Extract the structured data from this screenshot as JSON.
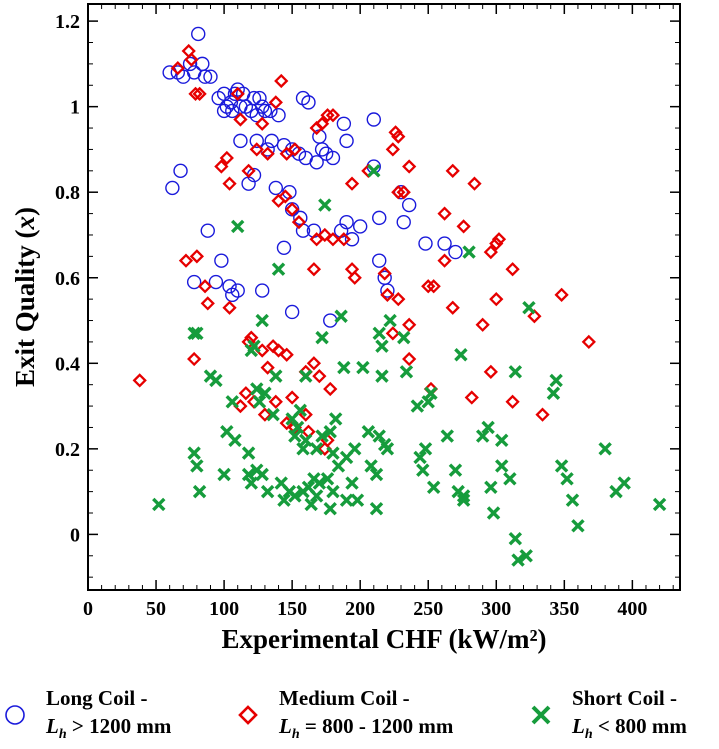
{
  "chart_data": {
    "type": "scatter",
    "title": "",
    "xlabel": "Experimental CHF (kW/m²)",
    "ylabel_prefix": "Exit Quality (",
    "ylabel_var": "x",
    "ylabel_suffix": ")",
    "xlim": [
      0,
      435
    ],
    "ylim": [
      -0.13,
      1.24
    ],
    "xticks": [
      0,
      50,
      100,
      150,
      200,
      250,
      300,
      350,
      400
    ],
    "yticks": [
      0,
      0.2,
      0.4,
      0.6,
      0.8,
      1,
      1.2
    ],
    "ytick_labels": [
      "0",
      "0.2",
      "0.4",
      "0.6",
      "0.8",
      "1",
      "1.2"
    ],
    "legend_position": "bottom",
    "series": [
      {
        "name": "Long Coil - Lh > 1200 mm",
        "legend_line1": "Long Coil -",
        "legend_var": "L",
        "legend_sub": "h",
        "legend_rest": " > 1200 mm",
        "marker": "circle",
        "color": "#1a1adb",
        "points": [
          [
            60,
            1.08
          ],
          [
            66,
            1.08
          ],
          [
            70,
            1.07
          ],
          [
            75,
            1.1
          ],
          [
            78,
            1.08
          ],
          [
            81,
            1.17
          ],
          [
            84,
            1.1
          ],
          [
            86,
            1.07
          ],
          [
            90,
            1.07
          ],
          [
            96,
            1.02
          ],
          [
            100,
            1.03
          ],
          [
            100,
            0.99
          ],
          [
            102,
            1.0
          ],
          [
            105,
            1.01
          ],
          [
            106,
            0.99
          ],
          [
            108,
            1.03
          ],
          [
            110,
            1.04
          ],
          [
            112,
            1.0
          ],
          [
            114,
            1.03
          ],
          [
            116,
            1.0
          ],
          [
            120,
            0.99
          ],
          [
            122,
            1.02
          ],
          [
            124,
            0.98
          ],
          [
            126,
            1.02
          ],
          [
            128,
            1.0
          ],
          [
            130,
            0.99
          ],
          [
            134,
            0.99
          ],
          [
            140,
            0.98
          ],
          [
            135,
            0.92
          ],
          [
            124,
            0.92
          ],
          [
            112,
            0.92
          ],
          [
            132,
            0.9
          ],
          [
            144,
            0.91
          ],
          [
            150,
            0.9
          ],
          [
            155,
            0.89
          ],
          [
            160,
            0.88
          ],
          [
            158,
            1.02
          ],
          [
            162,
            1.01
          ],
          [
            170,
            0.93
          ],
          [
            172,
            0.9
          ],
          [
            168,
            0.87
          ],
          [
            175,
            0.89
          ],
          [
            180,
            0.88
          ],
          [
            188,
            0.96
          ],
          [
            190,
            0.92
          ],
          [
            210,
            0.97
          ],
          [
            62,
            0.81
          ],
          [
            68,
            0.85
          ],
          [
            122,
            0.84
          ],
          [
            118,
            0.82
          ],
          [
            138,
            0.81
          ],
          [
            148,
            0.8
          ],
          [
            150,
            0.76
          ],
          [
            156,
            0.74
          ],
          [
            158,
            0.71
          ],
          [
            166,
            0.71
          ],
          [
            186,
            0.71
          ],
          [
            190,
            0.73
          ],
          [
            194,
            0.69
          ],
          [
            200,
            0.72
          ],
          [
            214,
            0.74
          ],
          [
            236,
            0.77
          ],
          [
            230,
            0.8
          ],
          [
            232,
            0.73
          ],
          [
            248,
            0.68
          ],
          [
            262,
            0.68
          ],
          [
            270,
            0.66
          ],
          [
            214,
            0.64
          ],
          [
            218,
            0.6
          ],
          [
            220,
            0.57
          ],
          [
            88,
            0.71
          ],
          [
            98,
            0.64
          ],
          [
            94,
            0.59
          ],
          [
            78,
            0.59
          ],
          [
            104,
            0.58
          ],
          [
            110,
            0.57
          ],
          [
            106,
            0.56
          ],
          [
            128,
            0.57
          ],
          [
            144,
            0.67
          ],
          [
            150,
            0.52
          ],
          [
            178,
            0.5
          ],
          [
            210,
            0.86
          ]
        ]
      },
      {
        "name": "Medium Coil - Lh = 800 - 1200 mm",
        "legend_line1": "Medium Coil -",
        "legend_var": "L",
        "legend_sub": "h",
        "legend_rest": " = 800 - 1200 mm",
        "marker": "diamond",
        "color": "#e60000",
        "points": [
          [
            66,
            1.09
          ],
          [
            74,
            1.13
          ],
          [
            76,
            1.11
          ],
          [
            79,
            1.03
          ],
          [
            82,
            1.03
          ],
          [
            110,
            1.03
          ],
          [
            112,
            0.97
          ],
          [
            138,
            1.01
          ],
          [
            142,
            1.06
          ],
          [
            128,
            0.96
          ],
          [
            132,
            0.89
          ],
          [
            124,
            0.9
          ],
          [
            146,
            0.89
          ],
          [
            152,
            0.9
          ],
          [
            168,
            0.95
          ],
          [
            172,
            0.96
          ],
          [
            176,
            0.98
          ],
          [
            180,
            0.98
          ],
          [
            226,
            0.94
          ],
          [
            228,
            0.93
          ],
          [
            224,
            0.9
          ],
          [
            236,
            0.86
          ],
          [
            98,
            0.86
          ],
          [
            102,
            0.88
          ],
          [
            104,
            0.82
          ],
          [
            118,
            0.85
          ],
          [
            140,
            0.78
          ],
          [
            145,
            0.79
          ],
          [
            150,
            0.76
          ],
          [
            155,
            0.73
          ],
          [
            168,
            0.69
          ],
          [
            174,
            0.7
          ],
          [
            180,
            0.69
          ],
          [
            194,
            0.82
          ],
          [
            206,
            0.85
          ],
          [
            228,
            0.8
          ],
          [
            232,
            0.8
          ],
          [
            262,
            0.75
          ],
          [
            268,
            0.85
          ],
          [
            284,
            0.82
          ],
          [
            276,
            0.72
          ],
          [
            300,
            0.68
          ],
          [
            302,
            0.69
          ],
          [
            296,
            0.66
          ],
          [
            312,
            0.62
          ],
          [
            300,
            0.55
          ],
          [
            262,
            0.64
          ],
          [
            250,
            0.58
          ],
          [
            254,
            0.58
          ],
          [
            228,
            0.55
          ],
          [
            220,
            0.56
          ],
          [
            218,
            0.61
          ],
          [
            194,
            0.62
          ],
          [
            188,
            0.69
          ],
          [
            166,
            0.62
          ],
          [
            72,
            0.64
          ],
          [
            80,
            0.65
          ],
          [
            86,
            0.58
          ],
          [
            88,
            0.54
          ],
          [
            104,
            0.53
          ],
          [
            118,
            0.45
          ],
          [
            120,
            0.46
          ],
          [
            128,
            0.43
          ],
          [
            132,
            0.39
          ],
          [
            140,
            0.43
          ],
          [
            146,
            0.42
          ],
          [
            136,
            0.44
          ],
          [
            160,
            0.38
          ],
          [
            166,
            0.4
          ],
          [
            170,
            0.37
          ],
          [
            178,
            0.34
          ],
          [
            196,
            0.6
          ],
          [
            224,
            0.47
          ],
          [
            236,
            0.49
          ],
          [
            236,
            0.41
          ],
          [
            252,
            0.34
          ],
          [
            268,
            0.53
          ],
          [
            282,
            0.32
          ],
          [
            290,
            0.49
          ],
          [
            296,
            0.38
          ],
          [
            312,
            0.31
          ],
          [
            328,
            0.51
          ],
          [
            334,
            0.28
          ],
          [
            348,
            0.56
          ],
          [
            368,
            0.45
          ],
          [
            38,
            0.36
          ],
          [
            78,
            0.41
          ],
          [
            112,
            0.3
          ],
          [
            116,
            0.33
          ],
          [
            122,
            0.31
          ],
          [
            130,
            0.28
          ],
          [
            138,
            0.31
          ],
          [
            146,
            0.26
          ],
          [
            150,
            0.32
          ],
          [
            152,
            0.25
          ],
          [
            160,
            0.28
          ],
          [
            162,
            0.24
          ],
          [
            174,
            0.2
          ],
          [
            176,
            0.22
          ]
        ]
      },
      {
        "name": "Short Coil - Lh < 800 mm",
        "legend_line1": "Short Coil -",
        "legend_var": "L",
        "legend_sub": "h",
        "legend_rest": " < 800 mm",
        "marker": "x",
        "color": "#169c3c",
        "points": [
          [
            52,
            0.07
          ],
          [
            78,
            0.47
          ],
          [
            80,
            0.47
          ],
          [
            78,
            0.19
          ],
          [
            80,
            0.16
          ],
          [
            82,
            0.1
          ],
          [
            90,
            0.37
          ],
          [
            94,
            0.36
          ],
          [
            102,
            0.24
          ],
          [
            100,
            0.14
          ],
          [
            106,
            0.31
          ],
          [
            108,
            0.22
          ],
          [
            110,
            0.72
          ],
          [
            118,
            0.19
          ],
          [
            118,
            0.14
          ],
          [
            120,
            0.12
          ],
          [
            120,
            0.43
          ],
          [
            122,
            0.44
          ],
          [
            124,
            0.34
          ],
          [
            124,
            0.15
          ],
          [
            126,
            0.31
          ],
          [
            128,
            0.5
          ],
          [
            128,
            0.14
          ],
          [
            130,
            0.33
          ],
          [
            132,
            0.1
          ],
          [
            136,
            0.28
          ],
          [
            138,
            0.37
          ],
          [
            140,
            0.62
          ],
          [
            142,
            0.12
          ],
          [
            144,
            0.08
          ],
          [
            148,
            0.1
          ],
          [
            150,
            0.27
          ],
          [
            152,
            0.23
          ],
          [
            152,
            0.09
          ],
          [
            154,
            0.25
          ],
          [
            156,
            0.29
          ],
          [
            158,
            0.2
          ],
          [
            158,
            0.1
          ],
          [
            160,
            0.37
          ],
          [
            160,
            0.22
          ],
          [
            162,
            0.11
          ],
          [
            164,
            0.07
          ],
          [
            166,
            0.13
          ],
          [
            168,
            0.2
          ],
          [
            168,
            0.09
          ],
          [
            170,
            0.12
          ],
          [
            172,
            0.46
          ],
          [
            172,
            0.23
          ],
          [
            174,
            0.77
          ],
          [
            176,
            0.13
          ],
          [
            178,
            0.06
          ],
          [
            178,
            0.24
          ],
          [
            180,
            0.19
          ],
          [
            180,
            0.1
          ],
          [
            182,
            0.27
          ],
          [
            184,
            0.16
          ],
          [
            186,
            0.51
          ],
          [
            188,
            0.39
          ],
          [
            190,
            0.18
          ],
          [
            190,
            0.08
          ],
          [
            194,
            0.12
          ],
          [
            196,
            0.2
          ],
          [
            198,
            0.08
          ],
          [
            202,
            0.39
          ],
          [
            206,
            0.24
          ],
          [
            208,
            0.16
          ],
          [
            210,
            0.85
          ],
          [
            212,
            0.06
          ],
          [
            212,
            0.14
          ],
          [
            214,
            0.47
          ],
          [
            214,
            0.23
          ],
          [
            216,
            0.44
          ],
          [
            216,
            0.37
          ],
          [
            218,
            0.21
          ],
          [
            220,
            0.2
          ],
          [
            222,
            0.5
          ],
          [
            232,
            0.46
          ],
          [
            234,
            0.38
          ],
          [
            242,
            0.3
          ],
          [
            244,
            0.18
          ],
          [
            246,
            0.15
          ],
          [
            248,
            0.2
          ],
          [
            250,
            0.31
          ],
          [
            252,
            0.33
          ],
          [
            254,
            0.11
          ],
          [
            264,
            0.23
          ],
          [
            270,
            0.15
          ],
          [
            272,
            0.1
          ],
          [
            274,
            0.42
          ],
          [
            276,
            0.09
          ],
          [
            276,
            0.08
          ],
          [
            280,
            0.66
          ],
          [
            290,
            0.23
          ],
          [
            294,
            0.25
          ],
          [
            296,
            0.11
          ],
          [
            298,
            0.05
          ],
          [
            304,
            0.22
          ],
          [
            304,
            0.16
          ],
          [
            310,
            0.13
          ],
          [
            314,
            -0.01
          ],
          [
            314,
            0.38
          ],
          [
            316,
            -0.06
          ],
          [
            322,
            -0.05
          ],
          [
            324,
            0.53
          ],
          [
            342,
            0.33
          ],
          [
            344,
            0.36
          ],
          [
            348,
            0.16
          ],
          [
            352,
            0.13
          ],
          [
            356,
            0.08
          ],
          [
            360,
            0.02
          ],
          [
            380,
            0.2
          ],
          [
            388,
            0.1
          ],
          [
            394,
            0.12
          ],
          [
            420,
            0.07
          ]
        ]
      }
    ]
  }
}
